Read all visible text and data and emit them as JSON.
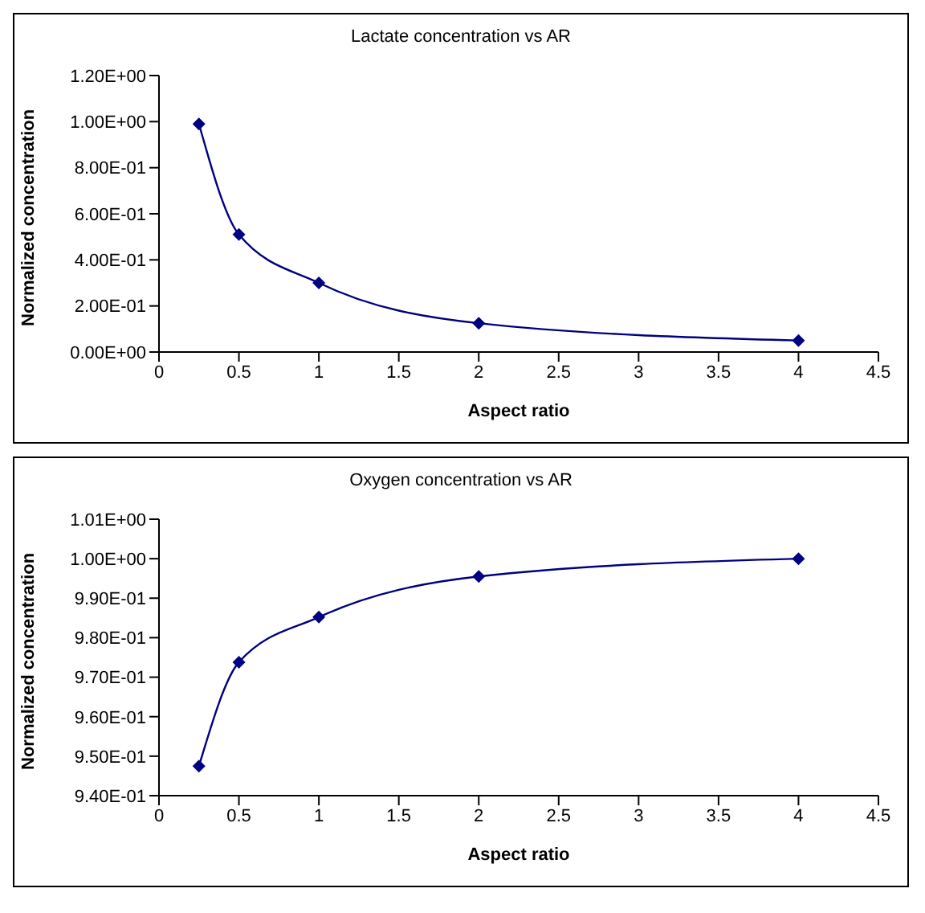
{
  "chart_data": [
    {
      "type": "line",
      "title": "Lactate concentration vs AR",
      "xlabel": "Aspect ratio",
      "ylabel": "Normalized concentration",
      "x": [
        0.25,
        0.5,
        1,
        2,
        4
      ],
      "series": [
        {
          "color": "#000080",
          "values": [
            0.99,
            0.51,
            0.3,
            0.125,
            0.05
          ]
        }
      ],
      "xlim": [
        0,
        4.5
      ],
      "xticks": [
        0,
        0.5,
        1,
        1.5,
        2,
        2.5,
        3,
        3.5,
        4,
        4.5
      ],
      "ylim": [
        0,
        1.2
      ],
      "yticks": [
        {
          "value": 0,
          "label": "0.00E+00"
        },
        {
          "value": 0.2,
          "label": "2.00E-01"
        },
        {
          "value": 0.4,
          "label": "4.00E-01"
        },
        {
          "value": 0.6,
          "label": "6.00E-01"
        },
        {
          "value": 0.8,
          "label": "8.00E-01"
        },
        {
          "value": 1,
          "label": "1.00E+00"
        },
        {
          "value": 1.2,
          "label": "1.20E+00"
        }
      ],
      "grid": false,
      "legend": false,
      "marker": "diamond",
      "line_style": "solid"
    },
    {
      "type": "line",
      "title": "Oxygen concentration vs AR",
      "xlabel": "Aspect ratio",
      "ylabel": "Normalized concentration",
      "x": [
        0.25,
        0.5,
        1,
        2,
        4
      ],
      "series": [
        {
          "color": "#000080",
          "values": [
            0.9475,
            0.9738,
            0.9852,
            0.9955,
            1.0
          ]
        }
      ],
      "xlim": [
        0,
        4.5
      ],
      "xticks": [
        0,
        0.5,
        1,
        1.5,
        2,
        2.5,
        3,
        3.5,
        4,
        4.5
      ],
      "ylim": [
        0.94,
        1.01
      ],
      "yticks": [
        {
          "value": 0.94,
          "label": "9.40E-01"
        },
        {
          "value": 0.95,
          "label": "9.50E-01"
        },
        {
          "value": 0.96,
          "label": "9.60E-01"
        },
        {
          "value": 0.97,
          "label": "9.70E-01"
        },
        {
          "value": 0.98,
          "label": "9.80E-01"
        },
        {
          "value": 0.99,
          "label": "9.90E-01"
        },
        {
          "value": 1.0,
          "label": "1.00E+00"
        },
        {
          "value": 1.01,
          "label": "1.01E+00"
        }
      ],
      "grid": false,
      "legend": false,
      "marker": "diamond",
      "line_style": "solid"
    }
  ]
}
